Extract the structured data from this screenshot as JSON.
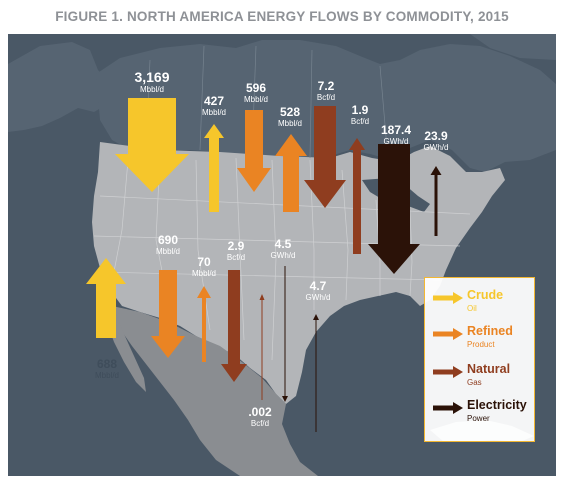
{
  "figure": {
    "title": "FIGURE 1. NORTH AMERICA ENERGY FLOWS BY COMMODITY, 2015"
  },
  "colors": {
    "crude": "#f6c62b",
    "refined": "#ea8423",
    "gas": "#8f3d1f",
    "electricity": "#2b1208",
    "ocean": "#4a5866",
    "land": "#b3b5b8"
  },
  "legend": {
    "items": [
      {
        "key": "crude",
        "name": "Crude",
        "sub": "Oil"
      },
      {
        "key": "refined",
        "name": "Refined",
        "sub": "Product"
      },
      {
        "key": "gas",
        "name": "Natural",
        "sub": "Gas"
      },
      {
        "key": "electricity",
        "name": "Electricity",
        "sub": "Power"
      }
    ]
  },
  "flows": [
    {
      "id": "canada-us-crude",
      "commodity": "crude",
      "direction": "down",
      "value": "3,169",
      "unit": "Mbbl/d"
    },
    {
      "id": "us-canada-crude",
      "commodity": "crude",
      "direction": "up",
      "value": "427",
      "unit": "Mbbl/d"
    },
    {
      "id": "canada-us-refined",
      "commodity": "refined",
      "direction": "down",
      "value": "596",
      "unit": "Mbbl/d"
    },
    {
      "id": "us-canada-refined",
      "commodity": "refined",
      "direction": "up",
      "value": "528",
      "unit": "Mbbl/d"
    },
    {
      "id": "canada-us-gas",
      "commodity": "gas",
      "direction": "down",
      "value": "7.2",
      "unit": "Bcf/d"
    },
    {
      "id": "us-canada-gas",
      "commodity": "gas",
      "direction": "up",
      "value": "1.9",
      "unit": "Bcf/d"
    },
    {
      "id": "canada-us-electricity",
      "commodity": "electricity",
      "direction": "down",
      "value": "187.4",
      "unit": "GWh/d"
    },
    {
      "id": "us-canada-electricity",
      "commodity": "electricity",
      "direction": "up",
      "value": "23.9",
      "unit": "GWh/d"
    },
    {
      "id": "mexico-us-crude",
      "commodity": "crude",
      "direction": "up",
      "value": "688",
      "unit": "Mbbl/d"
    },
    {
      "id": "us-mexico-refined",
      "commodity": "refined",
      "direction": "down",
      "value": "690",
      "unit": "Mbbl/d"
    },
    {
      "id": "mexico-us-refined",
      "commodity": "refined",
      "direction": "up",
      "value": "70",
      "unit": "Mbbl/d"
    },
    {
      "id": "us-mexico-gas",
      "commodity": "gas",
      "direction": "down",
      "value": "2.9",
      "unit": "Bcf/d"
    },
    {
      "id": "mexico-us-gas",
      "commodity": "gas",
      "direction": "up",
      "value": ".002",
      "unit": "Bcf/d"
    },
    {
      "id": "us-mexico-electricity",
      "commodity": "electricity",
      "direction": "down",
      "value": "4.5",
      "unit": "GWh/d"
    },
    {
      "id": "mexico-us-electricity",
      "commodity": "electricity",
      "direction": "up",
      "value": "4.7",
      "unit": "GWh/d"
    }
  ]
}
